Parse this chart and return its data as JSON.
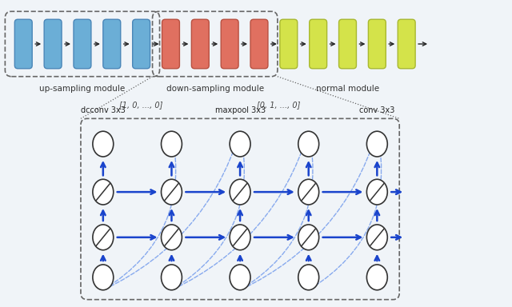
{
  "bg_color": "#f0f4f8",
  "up_sampling_color": "#6baed6",
  "down_sampling_color": "#e07060",
  "normal_color": "#d4e34a",
  "up_edge_color": "#4a86b8",
  "down_edge_color": "#b85040",
  "normal_edge_color": "#a8b830",
  "arrow_color": "#222222",
  "up_label": "up-sampling module",
  "down_label": "down-sampling module",
  "normal_label": "normal module",
  "node_label_dcconv": "dcconv 3x3",
  "node_label_maxpool": "maxpool 3x3",
  "node_label_conv": "conv 3x3",
  "vec_label1": "[1, 0, ..., 0]",
  "vec_label2": "[0, 1, ..., 0]",
  "solid_blue": "#1a44cc",
  "light_blue": "#88aaee",
  "node_circle_color": "#ffffff",
  "node_circle_edge": "#333333",
  "diag_line_color": "#333333",
  "dash_box_color": "#666666",
  "dot_line_color": "#666666"
}
